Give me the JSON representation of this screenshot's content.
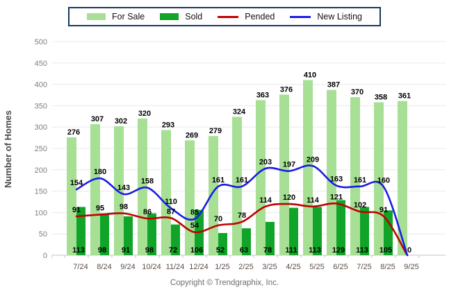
{
  "chart_data": {
    "type": "bar+line",
    "categories": [
      "7/24",
      "8/24",
      "9/24",
      "10/24",
      "11/24",
      "12/24",
      "1/25",
      "2/25",
      "3/25",
      "4/25",
      "5/25",
      "6/25",
      "7/25",
      "8/25",
      "9/25"
    ],
    "series": [
      {
        "name": "For Sale",
        "type": "bar",
        "color": "#a7e095",
        "values": [
          276,
          307,
          302,
          320,
          293,
          269,
          279,
          324,
          363,
          376,
          410,
          387,
          370,
          358,
          361
        ]
      },
      {
        "name": "Sold",
        "type": "bar",
        "color": "#10a428",
        "values": [
          113,
          98,
          91,
          98,
          72,
          106,
          52,
          63,
          78,
          111,
          113,
          129,
          113,
          105,
          0
        ]
      },
      {
        "name": "Pended",
        "type": "line",
        "color": "#c00000",
        "values": [
          91,
          95,
          98,
          86,
          87,
          54,
          70,
          78,
          114,
          120,
          114,
          121,
          102,
          91,
          0
        ]
      },
      {
        "name": "New Listing",
        "type": "line",
        "color": "#1a1ae6",
        "values": [
          154,
          180,
          143,
          158,
          110,
          85,
          161,
          161,
          203,
          197,
          209,
          163,
          161,
          160,
          0
        ]
      }
    ],
    "title": "",
    "xlabel": "",
    "ylabel": "Number of Homes",
    "ylim": [
      0,
      500
    ],
    "ytick_step": 50,
    "grid": true,
    "legend_position": "top"
  },
  "legend_border_color": "#17375e",
  "footer": {
    "copyright": "Copyright © Trendgraphix, Inc."
  }
}
